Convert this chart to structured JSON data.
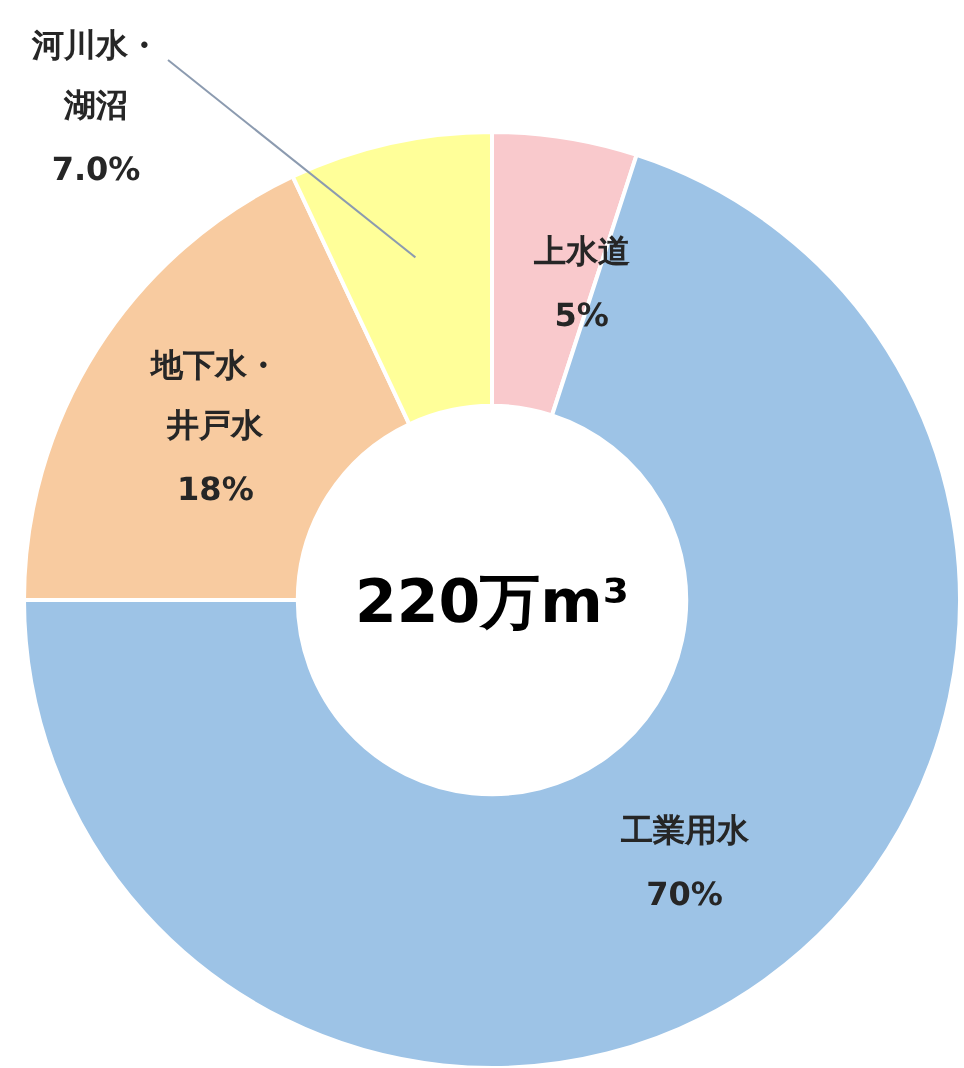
{
  "chart_data": {
    "type": "donut",
    "categories": [
      "上水道",
      "工業用水",
      "地下水・井戸水",
      "河川水・湖沼"
    ],
    "values": [
      5,
      70,
      18,
      7
    ],
    "colors": [
      "#f9c9cc",
      "#9dc3e6",
      "#f8cba0",
      "#ffff99"
    ],
    "value_labels": [
      "5%",
      "70%",
      "18%",
      "7.0%"
    ],
    "annotations": [
      "220万m³"
    ],
    "legend": false
  }
}
